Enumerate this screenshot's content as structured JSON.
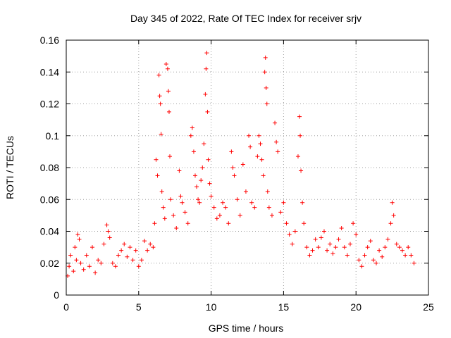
{
  "chart_data": {
    "type": "scatter",
    "title": "Day 345 of 2022, Rate Of TEC Index for receiver srjv",
    "xlabel": "GPS time / hours",
    "ylabel": "ROTI / TECUs",
    "xlim": [
      0,
      25
    ],
    "ylim": [
      0,
      0.16
    ],
    "xticks": [
      0,
      5,
      10,
      15,
      20,
      25
    ],
    "xtick_labels": [
      "0",
      "5",
      "10",
      "15",
      "20",
      "25"
    ],
    "yticks": [
      0,
      0.02,
      0.04,
      0.06,
      0.08,
      0.1,
      0.12,
      0.14,
      0.16
    ],
    "ytick_labels": [
      "0",
      "0.02",
      "0.04",
      "0.06",
      "0.08",
      "0.1",
      "0.12",
      "0.14",
      "0.16"
    ],
    "grid": true,
    "marker": "plus",
    "color": "#ff0000",
    "series": [
      {
        "values_note": "",
        "points": [
          [
            0.1,
            0.012
          ],
          [
            0.2,
            0.018
          ],
          [
            0.3,
            0.025
          ],
          [
            0.5,
            0.015
          ],
          [
            0.6,
            0.03
          ],
          [
            0.7,
            0.022
          ],
          [
            0.8,
            0.038
          ],
          [
            0.9,
            0.035
          ],
          [
            1.0,
            0.02
          ],
          [
            1.2,
            0.016
          ],
          [
            1.4,
            0.025
          ],
          [
            1.6,
            0.018
          ],
          [
            1.8,
            0.03
          ],
          [
            2.0,
            0.014
          ],
          [
            2.2,
            0.022
          ],
          [
            2.4,
            0.02
          ],
          [
            2.6,
            0.032
          ],
          [
            2.8,
            0.044
          ],
          [
            2.9,
            0.04
          ],
          [
            3.0,
            0.036
          ],
          [
            3.2,
            0.02
          ],
          [
            3.4,
            0.018
          ],
          [
            3.6,
            0.025
          ],
          [
            3.8,
            0.028
          ],
          [
            4.0,
            0.032
          ],
          [
            4.2,
            0.024
          ],
          [
            4.4,
            0.03
          ],
          [
            4.6,
            0.022
          ],
          [
            4.8,
            0.028
          ],
          [
            5.0,
            0.018
          ],
          [
            5.2,
            0.022
          ],
          [
            5.4,
            0.034
          ],
          [
            5.6,
            0.028
          ],
          [
            5.8,
            0.032
          ],
          [
            6.0,
            0.03
          ],
          [
            6.1,
            0.045
          ],
          [
            6.2,
            0.085
          ],
          [
            6.3,
            0.075
          ],
          [
            6.4,
            0.138
          ],
          [
            6.45,
            0.125
          ],
          [
            6.5,
            0.12
          ],
          [
            6.55,
            0.101
          ],
          [
            6.6,
            0.065
          ],
          [
            6.7,
            0.055
          ],
          [
            6.8,
            0.048
          ],
          [
            6.9,
            0.145
          ],
          [
            7.0,
            0.142
          ],
          [
            7.05,
            0.128
          ],
          [
            7.1,
            0.115
          ],
          [
            7.15,
            0.087
          ],
          [
            7.2,
            0.06
          ],
          [
            7.4,
            0.05
          ],
          [
            7.6,
            0.042
          ],
          [
            7.8,
            0.078
          ],
          [
            7.9,
            0.062
          ],
          [
            8.0,
            0.058
          ],
          [
            8.2,
            0.052
          ],
          [
            8.4,
            0.045
          ],
          [
            8.6,
            0.1
          ],
          [
            8.7,
            0.105
          ],
          [
            8.8,
            0.09
          ],
          [
            8.9,
            0.075
          ],
          [
            9.0,
            0.068
          ],
          [
            9.1,
            0.06
          ],
          [
            9.2,
            0.058
          ],
          [
            9.3,
            0.072
          ],
          [
            9.4,
            0.08
          ],
          [
            9.5,
            0.095
          ],
          [
            9.6,
            0.126
          ],
          [
            9.65,
            0.142
          ],
          [
            9.7,
            0.152
          ],
          [
            9.75,
            0.115
          ],
          [
            9.8,
            0.085
          ],
          [
            9.9,
            0.07
          ],
          [
            10.0,
            0.062
          ],
          [
            10.2,
            0.055
          ],
          [
            10.4,
            0.048
          ],
          [
            10.6,
            0.05
          ],
          [
            10.8,
            0.058
          ],
          [
            11.0,
            0.055
          ],
          [
            11.2,
            0.045
          ],
          [
            11.4,
            0.09
          ],
          [
            11.5,
            0.08
          ],
          [
            11.6,
            0.075
          ],
          [
            11.8,
            0.06
          ],
          [
            12.0,
            0.05
          ],
          [
            12.2,
            0.082
          ],
          [
            12.4,
            0.065
          ],
          [
            12.6,
            0.1
          ],
          [
            12.7,
            0.093
          ],
          [
            12.8,
            0.058
          ],
          [
            13.0,
            0.055
          ],
          [
            13.2,
            0.087
          ],
          [
            13.3,
            0.1
          ],
          [
            13.4,
            0.095
          ],
          [
            13.5,
            0.085
          ],
          [
            13.6,
            0.075
          ],
          [
            13.7,
            0.14
          ],
          [
            13.75,
            0.149
          ],
          [
            13.8,
            0.13
          ],
          [
            13.85,
            0.12
          ],
          [
            13.9,
            0.065
          ],
          [
            14.0,
            0.055
          ],
          [
            14.2,
            0.05
          ],
          [
            14.4,
            0.108
          ],
          [
            14.5,
            0.096
          ],
          [
            14.6,
            0.09
          ],
          [
            14.8,
            0.052
          ],
          [
            15.0,
            0.058
          ],
          [
            15.2,
            0.045
          ],
          [
            15.4,
            0.038
          ],
          [
            15.6,
            0.032
          ],
          [
            15.8,
            0.04
          ],
          [
            16.0,
            0.087
          ],
          [
            16.1,
            0.112
          ],
          [
            16.15,
            0.1
          ],
          [
            16.2,
            0.078
          ],
          [
            16.3,
            0.058
          ],
          [
            16.4,
            0.045
          ],
          [
            16.6,
            0.03
          ],
          [
            16.8,
            0.025
          ],
          [
            17.0,
            0.028
          ],
          [
            17.2,
            0.035
          ],
          [
            17.4,
            0.03
          ],
          [
            17.6,
            0.036
          ],
          [
            17.8,
            0.04
          ],
          [
            18.0,
            0.028
          ],
          [
            18.2,
            0.032
          ],
          [
            18.4,
            0.026
          ],
          [
            18.6,
            0.03
          ],
          [
            18.8,
            0.035
          ],
          [
            19.0,
            0.042
          ],
          [
            19.2,
            0.03
          ],
          [
            19.4,
            0.025
          ],
          [
            19.6,
            0.032
          ],
          [
            19.8,
            0.045
          ],
          [
            20.0,
            0.038
          ],
          [
            20.2,
            0.022
          ],
          [
            20.4,
            0.018
          ],
          [
            20.6,
            0.025
          ],
          [
            20.8,
            0.03
          ],
          [
            21.0,
            0.034
          ],
          [
            21.2,
            0.022
          ],
          [
            21.4,
            0.02
          ],
          [
            21.6,
            0.028
          ],
          [
            21.8,
            0.024
          ],
          [
            22.0,
            0.03
          ],
          [
            22.2,
            0.035
          ],
          [
            22.4,
            0.045
          ],
          [
            22.5,
            0.058
          ],
          [
            22.6,
            0.05
          ],
          [
            22.8,
            0.032
          ],
          [
            23.0,
            0.03
          ],
          [
            23.2,
            0.028
          ],
          [
            23.4,
            0.025
          ],
          [
            23.6,
            0.03
          ],
          [
            23.8,
            0.025
          ],
          [
            24.0,
            0.02
          ]
        ]
      }
    ]
  }
}
